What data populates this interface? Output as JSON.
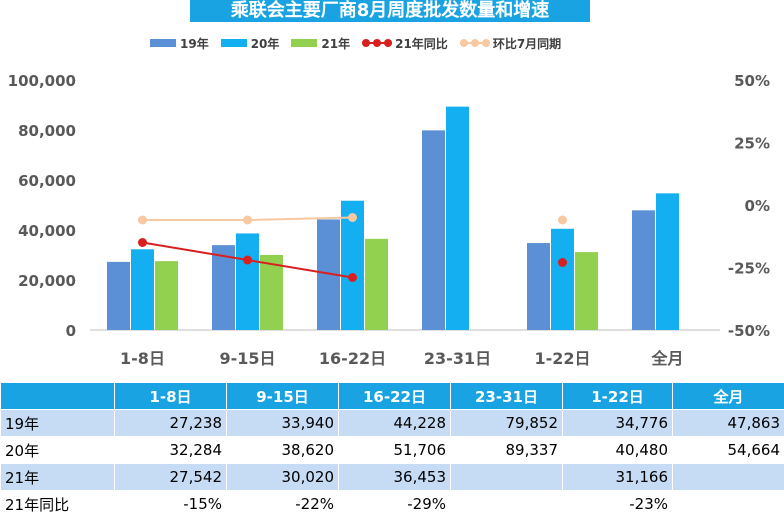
{
  "title": "乘联会主要厂商8月周度批发数量和增速",
  "legend": [
    {
      "name": "19年",
      "color": "#5b8fd6",
      "kind": "bar"
    },
    {
      "name": "20年",
      "color": "#13aff0",
      "kind": "bar"
    },
    {
      "name": "21年",
      "color": "#92d050",
      "kind": "bar"
    },
    {
      "name": "21年同比",
      "color": "#d92020",
      "kind": "line"
    },
    {
      "name": "环比7月同期",
      "color": "#f8c8a0",
      "kind": "line"
    }
  ],
  "chart_data": {
    "type": "bar",
    "categories": [
      "1-8日",
      "9-15日",
      "16-22日",
      "23-31日",
      "1-22日",
      "全月"
    ],
    "series": [
      {
        "name": "19年",
        "type": "bar",
        "axis": "left",
        "color": "#5b8fd6",
        "values": [
          27238,
          33940,
          44228,
          79852,
          34776,
          47863
        ]
      },
      {
        "name": "20年",
        "type": "bar",
        "axis": "left",
        "color": "#13aff0",
        "values": [
          32284,
          38620,
          51706,
          89337,
          40480,
          54664
        ]
      },
      {
        "name": "21年",
        "type": "bar",
        "axis": "left",
        "color": "#92d050",
        "values": [
          27542,
          30020,
          36453,
          null,
          31166,
          null
        ]
      },
      {
        "name": "21年同比",
        "type": "line",
        "axis": "right",
        "color": "#d92020",
        "values": [
          -15,
          -22,
          -29,
          null,
          -23,
          null
        ],
        "connect_first": 3
      },
      {
        "name": "环比7月同期",
        "type": "line",
        "axis": "right",
        "color": "#f8c8a0",
        "values": [
          -6,
          -6,
          -5,
          null,
          -6,
          null
        ],
        "connect_first": 3
      }
    ],
    "y_left": {
      "min": 0,
      "max": 100000,
      "ticks": [
        "0",
        "20,000",
        "40,000",
        "60,000",
        "80,000",
        "100,000"
      ]
    },
    "y_right": {
      "min": -50,
      "max": 50,
      "ticks": [
        "-50%",
        "-25%",
        "0%",
        "25%",
        "50%"
      ]
    },
    "grid": false,
    "legend_position": "top"
  },
  "table": {
    "headers": [
      "",
      "1-8日",
      "9-15日",
      "16-22日",
      "23-31日",
      "1-22日",
      "全月"
    ],
    "rows": [
      [
        "19年",
        "27,238",
        "33,940",
        "44,228",
        "79,852",
        "34,776",
        "47,863"
      ],
      [
        "20年",
        "32,284",
        "38,620",
        "51,706",
        "89,337",
        "40,480",
        "54,664"
      ],
      [
        "21年",
        "27,542",
        "30,020",
        "36,453",
        "",
        "31,166",
        ""
      ],
      [
        "21年同比",
        "-15%",
        "-22%",
        "-29%",
        "",
        "-23%",
        ""
      ]
    ]
  }
}
